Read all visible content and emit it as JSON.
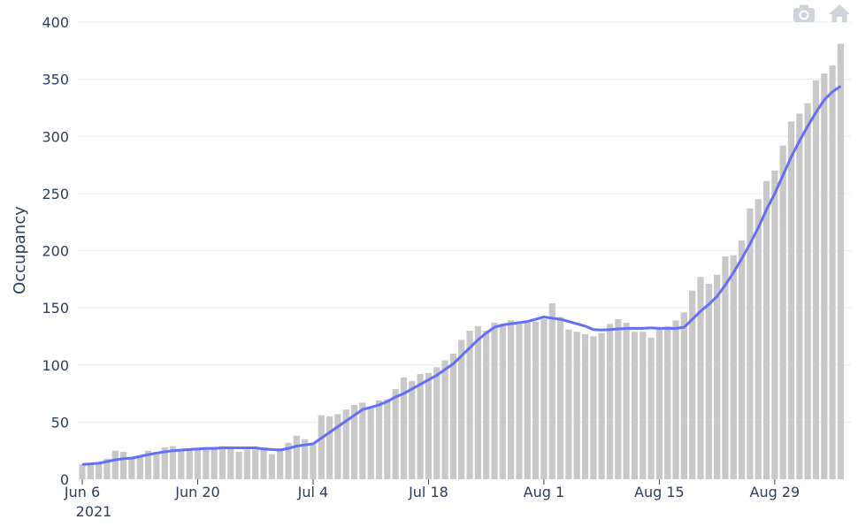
{
  "chart_data": {
    "type": "bar",
    "title": "",
    "xlabel": "",
    "ylabel": "Occupancy",
    "x_start": "2021-06-06",
    "x_end": "2021-09-06",
    "x_ticks": [
      "Jun 6",
      "Jun 20",
      "Jul 4",
      "Jul 18",
      "Aug 1",
      "Aug 15",
      "Aug 29"
    ],
    "x_tick_year": "2021",
    "y_ticks": [
      0,
      50,
      100,
      150,
      200,
      250,
      300,
      350,
      400
    ],
    "ylim": [
      0,
      400
    ],
    "grid": true,
    "colors": {
      "bars": "#c8c8c8",
      "line": "#636efa",
      "grid": "#e9ecf3",
      "text": "#2a3f5f"
    },
    "series": [
      {
        "type": "bar",
        "values": [
          13,
          13,
          14,
          18,
          25,
          24,
          18,
          20,
          25,
          24,
          28,
          29,
          25,
          27,
          26,
          28,
          27,
          29,
          28,
          24,
          26,
          26,
          28,
          22,
          27,
          32,
          38,
          35,
          32,
          56,
          55,
          57,
          61,
          65,
          67,
          63,
          69,
          70,
          79,
          89,
          86,
          92,
          93,
          98,
          104,
          110,
          122,
          130,
          134,
          130,
          137,
          134,
          139,
          136,
          137,
          138,
          140,
          154,
          142,
          131,
          129,
          127,
          125,
          128,
          136,
          140,
          137,
          129,
          129,
          124,
          133,
          134,
          139,
          146,
          165,
          177,
          171,
          179,
          195,
          196,
          209,
          237,
          245,
          261,
          270,
          292,
          313,
          320,
          329,
          349,
          355,
          362,
          381
        ]
      },
      {
        "type": "line",
        "values": [
          13,
          13.5,
          14,
          15.5,
          17,
          18,
          18.5,
          20,
          21.5,
          23,
          24,
          25,
          25.5,
          26,
          26.5,
          27,
          27,
          27.5,
          27.5,
          27.5,
          27.5,
          27.5,
          26.5,
          26,
          25.5,
          27,
          29,
          30,
          31,
          36,
          41,
          46,
          51,
          56,
          61,
          63,
          65,
          68,
          72,
          75,
          79,
          83,
          87,
          91,
          96,
          101,
          108,
          115,
          122,
          128,
          133,
          135,
          136,
          137,
          138,
          140,
          142,
          141,
          140,
          138,
          136,
          134,
          131,
          130.5,
          131,
          131.5,
          132,
          132,
          132,
          132.5,
          132,
          132,
          132,
          133,
          140,
          147,
          153,
          160,
          170,
          181,
          193,
          206,
          220,
          236,
          250,
          266,
          282,
          296,
          309,
          321,
          332,
          339,
          344
        ]
      }
    ]
  },
  "modebar": {
    "icons": [
      "camera-icon",
      "home-icon"
    ]
  }
}
